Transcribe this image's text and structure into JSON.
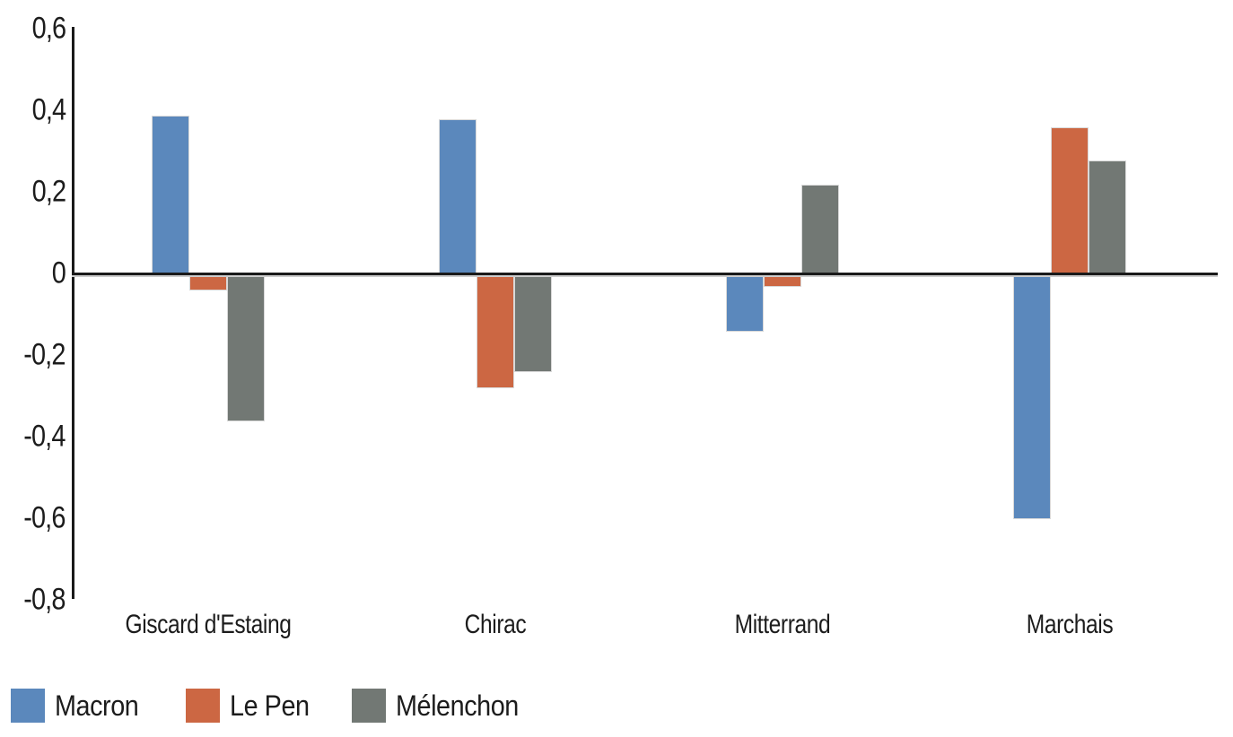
{
  "chart_data": {
    "type": "bar",
    "title": "",
    "xlabel": "",
    "ylabel": "",
    "categories": [
      "Giscard d'Estaing",
      "Chirac",
      "Mitterrand",
      "Marchais"
    ],
    "series": [
      {
        "name": "Macron",
        "color": "#5b88bc",
        "values": [
          0.39,
          0.38,
          -0.14,
          -0.6
        ]
      },
      {
        "name": "Le Pen",
        "color": "#cc6743",
        "values": [
          -0.04,
          -0.28,
          -0.03,
          0.36
        ]
      },
      {
        "name": "Mélenchon",
        "color": "#727874",
        "values": [
          -0.36,
          -0.24,
          0.22,
          0.28
        ]
      }
    ],
    "y_axis": {
      "range": [
        -0.8,
        0.6
      ],
      "decimal_separator": ",",
      "ticks": [
        {
          "label": "0,6",
          "value": 0.6
        },
        {
          "label": "0,4",
          "value": 0.4
        },
        {
          "label": "0,2",
          "value": 0.2
        },
        {
          "label": "0",
          "value": 0
        },
        {
          "label": "-0,2",
          "value": -0.2
        },
        {
          "label": "-0,4",
          "value": -0.4
        },
        {
          "label": "-0,6",
          "value": -0.6
        },
        {
          "label": "-0,8",
          "value": -0.8
        }
      ]
    },
    "grid": false,
    "legend_position": "bottom-left"
  },
  "colors": {
    "background": "#ffffff",
    "axis": "#1a1a1a",
    "text": "#1c1c1c",
    "bar_border": "#d9d9d9"
  }
}
